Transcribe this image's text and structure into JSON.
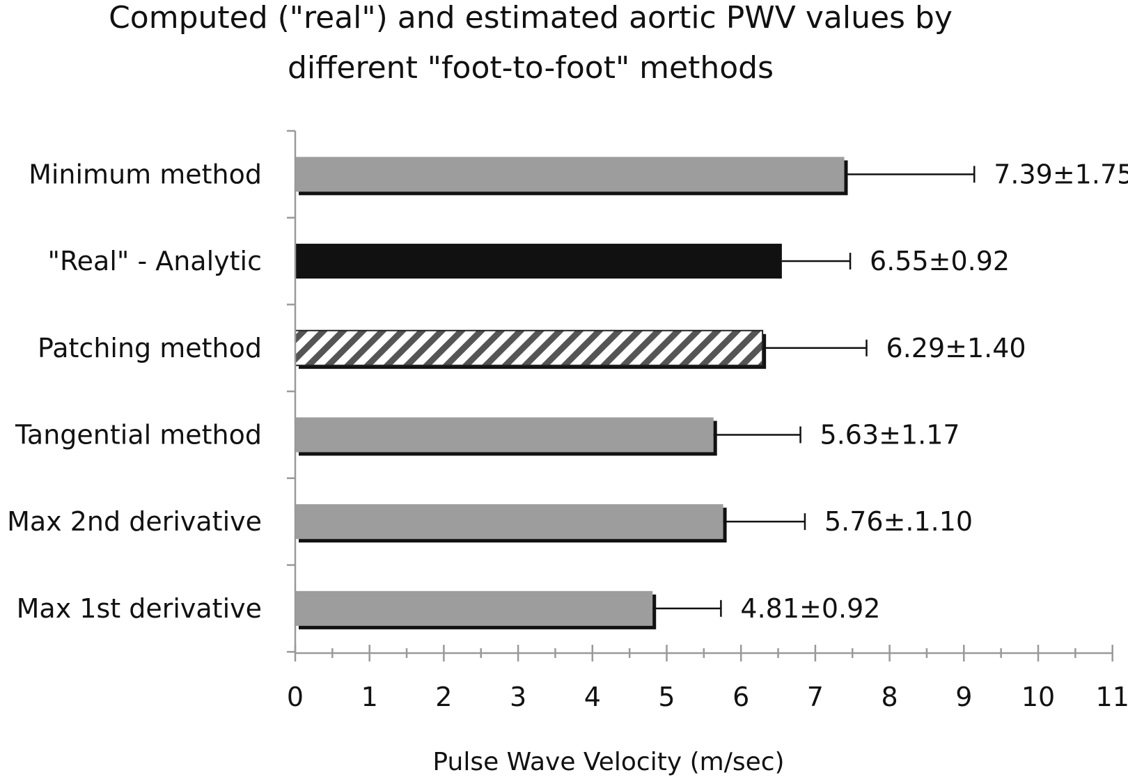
{
  "chart_data": {
    "type": "bar",
    "orientation": "horizontal",
    "title_lines": [
      "Computed (\"real\") and estimated aortic PWV values by",
      "different \"foot-to-foot\" methods"
    ],
    "xlabel": "Pulse Wave Velocity (m/sec)",
    "ylabel": "",
    "xlim": [
      0,
      11
    ],
    "x_ticks": [
      "0",
      "1",
      "2",
      "3",
      "4",
      "5",
      "6",
      "7",
      "8",
      "9",
      "10",
      "11"
    ],
    "grid": false,
    "legend": "none",
    "categories": [
      "Minimum method",
      "\"Real\" - Analytic",
      "Patching method",
      "Tangential method",
      "Max 2nd derivative",
      "Max 1st derivative"
    ],
    "values": [
      7.39,
      6.55,
      6.29,
      5.63,
      5.76,
      4.81
    ],
    "errors": [
      1.75,
      0.92,
      1.4,
      1.17,
      1.1,
      0.92
    ],
    "data_labels": [
      "7.39±1.75",
      "6.55±0.92",
      "6.29±1.40",
      "5.63±1.17",
      "5.76±.1.10",
      "4.81±0.92"
    ],
    "bar_styles": [
      "gray",
      "black",
      "hatched",
      "gray",
      "gray",
      "gray"
    ],
    "colors": {
      "gray": "#9d9d9d",
      "black": "#111111",
      "hatch_stroke": "#555555",
      "axis": "#999999",
      "shadow": "#111111"
    }
  }
}
